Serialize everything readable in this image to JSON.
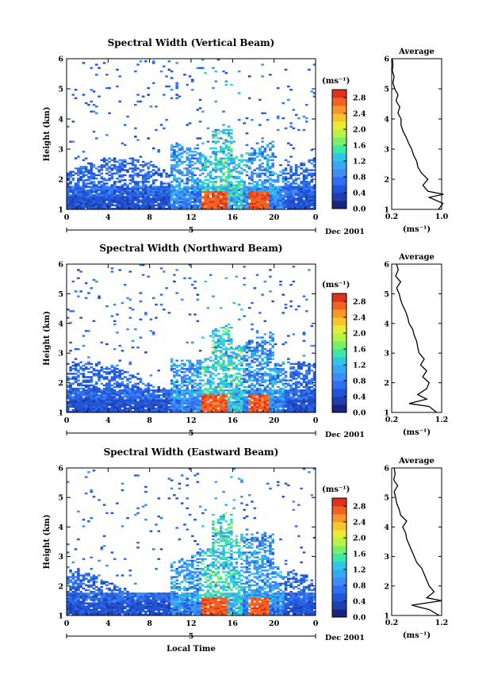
{
  "chart_data": [
    {
      "type": "heatmap",
      "title": "Spectral Width (Vertical Beam)",
      "xlabel": "",
      "ylabel": "Height (km)",
      "x_ticks": [
        "0",
        "4",
        "8",
        "12",
        "16",
        "20",
        "0"
      ],
      "y_ticks": [
        "1",
        "2",
        "3",
        "4",
        "5",
        "6"
      ],
      "date_day": "5",
      "date_label": "Dec 2001",
      "xlim": [
        0,
        24
      ],
      "ylim": [
        1,
        6
      ],
      "colorbar": {
        "unit": "(ms⁻¹)",
        "ticks": [
          "0.0",
          "0.4",
          "0.8",
          "1.2",
          "1.6",
          "2.0",
          "2.4",
          "2.8"
        ],
        "range": [
          0.0,
          3.0
        ]
      },
      "profile": {
        "title": "Average",
        "xlabel": "(ms⁻¹)",
        "x_ticks": [
          "0.2",
          "1.0"
        ],
        "xlim": [
          0.2,
          1.0
        ],
        "y_ticks": [
          "1",
          "2",
          "3",
          "4",
          "5",
          "6"
        ],
        "heights": [
          1.0,
          1.2,
          1.4,
          1.5,
          1.6,
          1.8,
          2.0,
          2.2,
          2.4,
          2.6,
          2.8,
          3.0,
          3.2,
          3.4,
          3.6,
          3.8,
          4.0,
          4.2,
          4.4,
          4.6,
          4.8,
          5.0,
          5.2,
          5.4,
          5.6,
          5.8,
          6.0
        ],
        "values": [
          0.95,
          1.02,
          0.8,
          1.03,
          0.78,
          0.7,
          0.78,
          0.68,
          0.62,
          0.6,
          0.55,
          0.52,
          0.47,
          0.43,
          0.38,
          0.35,
          0.35,
          0.3,
          0.33,
          0.27,
          0.3,
          0.25,
          0.22,
          0.24,
          0.21,
          0.22,
          0.21
        ]
      }
    },
    {
      "type": "heatmap",
      "title": "Spectral Width (Northward Beam)",
      "xlabel": "",
      "ylabel": "Height (km)",
      "x_ticks": [
        "0",
        "4",
        "8",
        "12",
        "16",
        "20",
        "0"
      ],
      "y_ticks": [
        "1",
        "2",
        "3",
        "4",
        "5",
        "6"
      ],
      "date_day": "5",
      "date_label": "Dec 2001",
      "xlim": [
        0,
        24
      ],
      "ylim": [
        1,
        6
      ],
      "colorbar": {
        "unit": "(ms⁻¹)",
        "ticks": [
          "0.0",
          "0.4",
          "0.8",
          "1.2",
          "1.6",
          "2.0",
          "2.4",
          "2.8"
        ],
        "range": [
          0.0,
          3.0
        ]
      },
      "profile": {
        "title": "Average",
        "xlabel": "(ms⁻¹)",
        "x_ticks": [
          "0.2",
          "1.2"
        ],
        "xlim": [
          0.2,
          1.2
        ],
        "y_ticks": [
          "1",
          "2",
          "3",
          "4",
          "5",
          "6"
        ],
        "heights": [
          1.0,
          1.2,
          1.3,
          1.45,
          1.6,
          1.8,
          2.0,
          2.2,
          2.4,
          2.6,
          2.8,
          3.0,
          3.2,
          3.4,
          3.6,
          3.8,
          4.0,
          4.2,
          4.4,
          4.6,
          4.8,
          5.0,
          5.2,
          5.4,
          5.6,
          5.8,
          6.0
        ],
        "values": [
          1.1,
          0.95,
          0.55,
          0.9,
          0.72,
          0.9,
          0.95,
          0.82,
          0.9,
          0.78,
          0.85,
          0.75,
          0.72,
          0.7,
          0.65,
          0.62,
          0.55,
          0.52,
          0.48,
          0.42,
          0.38,
          0.35,
          0.3,
          0.38,
          0.28,
          0.33,
          0.3
        ]
      }
    },
    {
      "type": "heatmap",
      "title": "Spectral Width (Eastward Beam)",
      "xlabel": "Local Time",
      "ylabel": "Height (km)",
      "x_ticks": [
        "0",
        "4",
        "8",
        "12",
        "16",
        "20",
        "0"
      ],
      "y_ticks": [
        "1",
        "2",
        "3",
        "4",
        "5",
        "6"
      ],
      "date_day": "5",
      "date_label": "Dec 2001",
      "xlim": [
        0,
        24
      ],
      "ylim": [
        1,
        6
      ],
      "colorbar": {
        "unit": "(ms⁻¹)",
        "ticks": [
          "0.0",
          "0.4",
          "0.8",
          "1.2",
          "1.6",
          "2.0",
          "2.4",
          "2.8"
        ],
        "range": [
          0.0,
          3.0
        ]
      },
      "profile": {
        "title": "Average",
        "xlabel": "(ms⁻¹)",
        "x_ticks": [
          "0.2",
          "1.2"
        ],
        "xlim": [
          0.2,
          1.2
        ],
        "y_ticks": [
          "1",
          "2",
          "3",
          "4",
          "5",
          "6"
        ],
        "heights": [
          1.0,
          1.2,
          1.35,
          1.5,
          1.6,
          1.8,
          2.0,
          2.2,
          2.4,
          2.6,
          2.8,
          3.0,
          3.2,
          3.4,
          3.6,
          3.8,
          4.0,
          4.2,
          4.4,
          4.6,
          4.8,
          5.0,
          5.2,
          5.4,
          5.6,
          5.8,
          6.0
        ],
        "values": [
          1.15,
          0.95,
          0.6,
          1.2,
          0.9,
          1.05,
          0.95,
          0.9,
          0.85,
          0.8,
          0.7,
          0.65,
          0.6,
          0.55,
          0.5,
          0.48,
          0.42,
          0.5,
          0.38,
          0.35,
          0.3,
          0.28,
          0.25,
          0.32,
          0.24,
          0.27,
          0.25
        ]
      }
    }
  ]
}
